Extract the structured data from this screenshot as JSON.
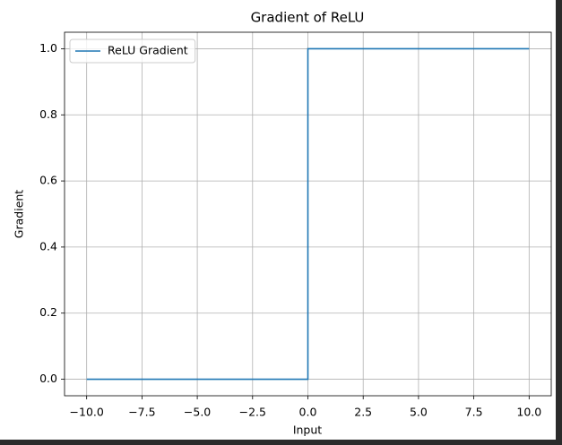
{
  "chart_data": {
    "type": "line",
    "title": "Gradient of ReLU",
    "x_label": "Input",
    "y_label": "Gradient",
    "x": [
      -10,
      0,
      0,
      10
    ],
    "series": [
      {
        "name": "ReLU Gradient",
        "color": "#1f77b4",
        "values": [
          0,
          0,
          1,
          1
        ]
      }
    ],
    "xlim": [
      -11,
      11
    ],
    "xticks": [
      {
        "value": -10,
        "label": "−10.0"
      },
      {
        "value": -7.5,
        "label": "−7.5"
      },
      {
        "value": -5,
        "label": "−5.0"
      },
      {
        "value": -2.5,
        "label": "−2.5"
      },
      {
        "value": 0,
        "label": "0.0"
      },
      2.5,
      {
        "value": 5,
        "label": "5.0"
      },
      7.5,
      {
        "value": 10,
        "label": "10.0"
      }
    ],
    "ylim": [
      -0.05,
      1.05
    ],
    "yticks": [
      {
        "value": 0,
        "label": "0.0"
      },
      0.2,
      0.4,
      0.6,
      0.8,
      {
        "value": 1,
        "label": "1.0"
      }
    ],
    "grid": true,
    "legend": "upper left"
  }
}
